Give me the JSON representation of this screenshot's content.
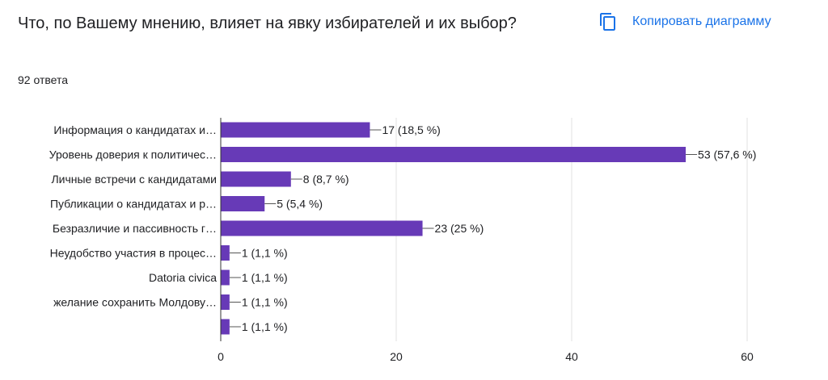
{
  "question": {
    "title": "Что, по Вашему мнению, влияет на явку избирателей и их выбор?",
    "response_count": "92 ответа"
  },
  "toolbar": {
    "copy_label": "Копировать диаграмму",
    "copy_icon": "copy-icon"
  },
  "colors": {
    "bar": "#673ab7",
    "accent": "#1a73e8",
    "grid": "#e0e0e0",
    "axis": "#333333"
  },
  "chart_data": {
    "type": "bar",
    "orientation": "horizontal",
    "categories": [
      "Информация о кандидатах и…",
      "Уровень доверия к политичес…",
      "Личные встречи с кандидатами",
      "Публикации о кандидатах и р…",
      "Безразличие и пассивность г…",
      "Неудобство участия в процес…",
      "Datoria civica",
      "желание сохранить Молдову…",
      ""
    ],
    "values": [
      17,
      53,
      8,
      5,
      23,
      1,
      1,
      1,
      1
    ],
    "value_labels": [
      "17 (18,5 %)",
      "53 (57,6 %)",
      "8 (8,7 %)",
      "5 (5,4 %)",
      "23 (25 %)",
      "1 (1,1 %)",
      "1 (1,1 %)",
      "1 (1,1 %)",
      "1 (1,1 %)"
    ],
    "xlim": [
      0,
      60
    ],
    "xticks": [
      0,
      20,
      40,
      60
    ],
    "grid": true
  }
}
